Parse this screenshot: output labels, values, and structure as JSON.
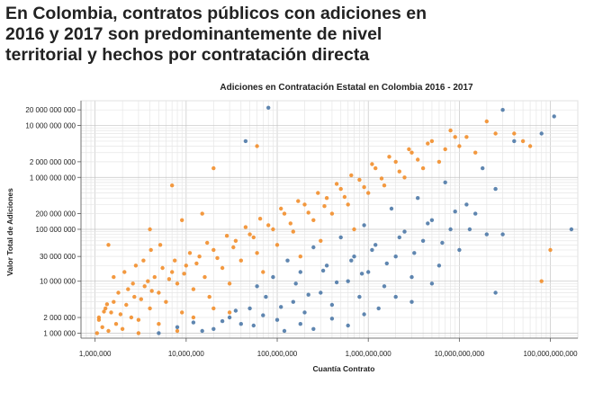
{
  "headline": {
    "line1": "En Colombia, contratos públicos con adiciones en",
    "line2": "2016 y 2017 son predominantemente de nivel",
    "line3": "territorial y hechos por contratación directa"
  },
  "chart_data": {
    "type": "scatter",
    "title": "Adiciones en Contratación Estatal en Colombia 2016 - 2017",
    "xlabel": "Cuantía Contrato",
    "ylabel": "Valor Total de Adiciones",
    "x_scale": "log",
    "y_scale": "log",
    "xlim": [
      700000,
      200000000000
    ],
    "ylim": [
      800000,
      30000000000
    ],
    "x_ticks": [
      {
        "value": 1000000,
        "label": "1,000,000"
      },
      {
        "value": 10000000,
        "label": "10,000,000"
      },
      {
        "value": 100000000,
        "label": "100,000,000"
      },
      {
        "value": 1000000000,
        "label": "1,000,000,000"
      },
      {
        "value": 10000000000,
        "label": "10,000,000,000"
      },
      {
        "value": 100000000000,
        "label": "100,000,000,000"
      }
    ],
    "y_ticks": [
      {
        "value": 1000000,
        "label": "1 000 000"
      },
      {
        "value": 2000000,
        "label": "2 000 000"
      },
      {
        "value": 10000000,
        "label": "10 000 000"
      },
      {
        "value": 30000000,
        "label": "30 000 000"
      },
      {
        "value": 100000000,
        "label": "100 000 000"
      },
      {
        "value": 200000000,
        "label": "200 000 000"
      },
      {
        "value": 1000000000,
        "label": "1 000 000 000"
      },
      {
        "value": 2000000000,
        "label": "2 000 000 000"
      },
      {
        "value": 10000000000,
        "label": "10 000 000 000"
      },
      {
        "value": 20000000000,
        "label": "20 000 000 000"
      }
    ],
    "grid": true,
    "colors": {
      "orange": "#f28e2b",
      "blue": "#4e79a7"
    },
    "series": [
      {
        "color": "orange",
        "points": [
          [
            1050000,
            1000000
          ],
          [
            1200000,
            1300000
          ],
          [
            1400000,
            1100000
          ],
          [
            1100000,
            2000000
          ],
          [
            1300000,
            3000000
          ],
          [
            1500000,
            2500000
          ],
          [
            1700000,
            1500000
          ],
          [
            2000000,
            1200000
          ],
          [
            1600000,
            4000000
          ],
          [
            1800000,
            6000000
          ],
          [
            2200000,
            3500000
          ],
          [
            2500000,
            2000000
          ],
          [
            3000000,
            1800000
          ],
          [
            2700000,
            5000000
          ],
          [
            3500000,
            8000000
          ],
          [
            4000000,
            3000000
          ],
          [
            4500000,
            12000000
          ],
          [
            5000000,
            6000000
          ],
          [
            6000000,
            4000000
          ],
          [
            7000000,
            15000000
          ],
          [
            8000000,
            9000000
          ],
          [
            9000000,
            2500000
          ],
          [
            10000000,
            20000000
          ],
          [
            12000000,
            7000000
          ],
          [
            14000000,
            30000000
          ],
          [
            16000000,
            12000000
          ],
          [
            18000000,
            5000000
          ],
          [
            20000000,
            40000000
          ],
          [
            25000000,
            18000000
          ],
          [
            30000000,
            9000000
          ],
          [
            35000000,
            60000000
          ],
          [
            40000000,
            25000000
          ],
          [
            50000000,
            80000000
          ],
          [
            60000000,
            35000000
          ],
          [
            70000000,
            15000000
          ],
          [
            80000000,
            120000000
          ],
          [
            100000000,
            50000000
          ],
          [
            120000000,
            200000000
          ],
          [
            150000000,
            90000000
          ],
          [
            180000000,
            30000000
          ],
          [
            200000000,
            300000000
          ],
          [
            250000000,
            150000000
          ],
          [
            300000000,
            60000000
          ],
          [
            350000000,
            400000000
          ],
          [
            400000000,
            200000000
          ],
          [
            500000000,
            600000000
          ],
          [
            600000000,
            300000000
          ],
          [
            700000000,
            100000000
          ],
          [
            800000000,
            900000000
          ],
          [
            1000000000,
            500000000
          ],
          [
            1200000000,
            1500000000
          ],
          [
            1500000000,
            700000000
          ],
          [
            2000000000,
            2000000000
          ],
          [
            2500000000,
            1000000000
          ],
          [
            3000000000,
            3000000000
          ],
          [
            4000000000,
            1500000000
          ],
          [
            5000000000,
            5000000000
          ],
          [
            6000000000,
            2000000000
          ],
          [
            8000000000,
            8000000000
          ],
          [
            10000000000,
            4000000000
          ],
          [
            12000000000,
            6000000000
          ],
          [
            15000000000,
            3000000000
          ],
          [
            20000000000,
            12000000000
          ],
          [
            25000000000,
            7000000000
          ],
          [
            3000000,
            1000000
          ],
          [
            5000000,
            1500000
          ],
          [
            8000000,
            1100000
          ],
          [
            12000000,
            2000000
          ],
          [
            20000000,
            3000000
          ],
          [
            30000000,
            2500000
          ],
          [
            1100000,
            1800000
          ],
          [
            1250000,
            2600000
          ],
          [
            1350000,
            3600000
          ],
          [
            1900000,
            2300000
          ],
          [
            2300000,
            7000000
          ],
          [
            2600000,
            9000000
          ],
          [
            3200000,
            4500000
          ],
          [
            3800000,
            10000000
          ],
          [
            4200000,
            6500000
          ],
          [
            5500000,
            18000000
          ],
          [
            6500000,
            11000000
          ],
          [
            7500000,
            25000000
          ],
          [
            9500000,
            14000000
          ],
          [
            11000000,
            35000000
          ],
          [
            13000000,
            22000000
          ],
          [
            17000000,
            55000000
          ],
          [
            22000000,
            28000000
          ],
          [
            28000000,
            75000000
          ],
          [
            33000000,
            45000000
          ],
          [
            45000000,
            110000000
          ],
          [
            55000000,
            70000000
          ],
          [
            65000000,
            160000000
          ],
          [
            90000000,
            100000000
          ],
          [
            110000000,
            250000000
          ],
          [
            140000000,
            130000000
          ],
          [
            170000000,
            350000000
          ],
          [
            220000000,
            210000000
          ],
          [
            280000000,
            500000000
          ],
          [
            330000000,
            280000000
          ],
          [
            450000000,
            750000000
          ],
          [
            550000000,
            420000000
          ],
          [
            650000000,
            1100000000
          ],
          [
            900000000,
            650000000
          ],
          [
            1100000000,
            1800000000
          ],
          [
            1400000000,
            950000000
          ],
          [
            1700000000,
            2500000000
          ],
          [
            2200000000,
            1300000000
          ],
          [
            2800000000,
            3500000000
          ],
          [
            3500000000,
            2200000000
          ],
          [
            4500000000,
            4500000000
          ],
          [
            7000000000,
            3500000000
          ],
          [
            9000000000,
            6000000000
          ],
          [
            60000000000,
            4000000000
          ],
          [
            50000000000,
            5000000000
          ],
          [
            40000000000,
            7000000000
          ],
          [
            60000000,
            4000000000
          ],
          [
            100000000000,
            40000000
          ],
          [
            80000000000,
            10000000
          ],
          [
            15000000,
            200000000
          ],
          [
            7000000,
            700000000
          ],
          [
            9000000,
            150000000
          ],
          [
            1400000,
            50000000
          ],
          [
            4000000,
            100000000
          ],
          [
            20000000,
            1500000000
          ],
          [
            1600000,
            12000000
          ],
          [
            2100000,
            15000000
          ],
          [
            2800000,
            20000000
          ],
          [
            3400000,
            25000000
          ],
          [
            4100000,
            40000000
          ],
          [
            5200000,
            50000000
          ]
        ]
      },
      {
        "color": "blue",
        "points": [
          [
            5000000,
            1000000
          ],
          [
            8000000,
            1300000
          ],
          [
            12000000,
            1600000
          ],
          [
            20000000,
            1200000
          ],
          [
            30000000,
            2000000
          ],
          [
            40000000,
            1500000
          ],
          [
            50000000,
            3000000
          ],
          [
            70000000,
            2200000
          ],
          [
            100000000,
            1800000
          ],
          [
            150000000,
            4000000
          ],
          [
            200000000,
            2500000
          ],
          [
            300000000,
            6000000
          ],
          [
            400000000,
            3500000
          ],
          [
            600000000,
            10000000
          ],
          [
            800000000,
            5000000
          ],
          [
            1000000000,
            15000000
          ],
          [
            1500000000,
            8000000
          ],
          [
            2000000000,
            30000000
          ],
          [
            3000000000,
            12000000
          ],
          [
            4000000000,
            60000000
          ],
          [
            6000000000,
            20000000
          ],
          [
            8000000000,
            100000000
          ],
          [
            10000000000,
            40000000
          ],
          [
            15000000000,
            200000000
          ],
          [
            20000000000,
            80000000
          ],
          [
            25000000000,
            6000000
          ],
          [
            60000000,
            8000000
          ],
          [
            90000000,
            12000000
          ],
          [
            130000000,
            25000000
          ],
          [
            180000000,
            15000000
          ],
          [
            250000000,
            45000000
          ],
          [
            350000000,
            20000000
          ],
          [
            500000000,
            70000000
          ],
          [
            700000000,
            30000000
          ],
          [
            900000000,
            120000000
          ],
          [
            1200000000,
            50000000
          ],
          [
            1800000000,
            250000000
          ],
          [
            2500000000,
            90000000
          ],
          [
            3500000000,
            400000000
          ],
          [
            5000000000,
            150000000
          ],
          [
            7000000000,
            800000000
          ],
          [
            12000000000,
            300000000
          ],
          [
            18000000000,
            1500000000
          ],
          [
            25000000000,
            600000000
          ],
          [
            30000000000,
            20000000000
          ],
          [
            40000000000,
            5000000000
          ],
          [
            80000000000,
            7000000000
          ],
          [
            110000000000,
            15000000000
          ],
          [
            170000000000,
            100000000
          ],
          [
            30000000000,
            80000000
          ],
          [
            45000000,
            5000000000
          ],
          [
            80000000,
            22000000000
          ],
          [
            15000000,
            1100000
          ],
          [
            25000000,
            1700000
          ],
          [
            35000000,
            2700000
          ],
          [
            55000000,
            1400000
          ],
          [
            75000000,
            5000000
          ],
          [
            110000000,
            3200000
          ],
          [
            160000000,
            9000000
          ],
          [
            220000000,
            5500000
          ],
          [
            320000000,
            16000000
          ],
          [
            450000000,
            9500000
          ],
          [
            650000000,
            25000000
          ],
          [
            850000000,
            14000000
          ],
          [
            1100000000,
            40000000
          ],
          [
            1600000000,
            22000000
          ],
          [
            2200000000,
            70000000
          ],
          [
            3200000000,
            35000000
          ],
          [
            4500000000,
            130000000
          ],
          [
            6500000000,
            55000000
          ],
          [
            9000000000,
            220000000
          ],
          [
            13000000000,
            100000000
          ],
          [
            120000000,
            1100000
          ],
          [
            180000000,
            1500000
          ],
          [
            250000000,
            1200000
          ],
          [
            400000000,
            1900000
          ],
          [
            600000000,
            1400000
          ],
          [
            900000000,
            2300000
          ],
          [
            1300000000,
            3000000
          ],
          [
            2000000000,
            5000000
          ],
          [
            3000000000,
            4000000
          ],
          [
            5000000000,
            9000000
          ]
        ]
      }
    ]
  }
}
